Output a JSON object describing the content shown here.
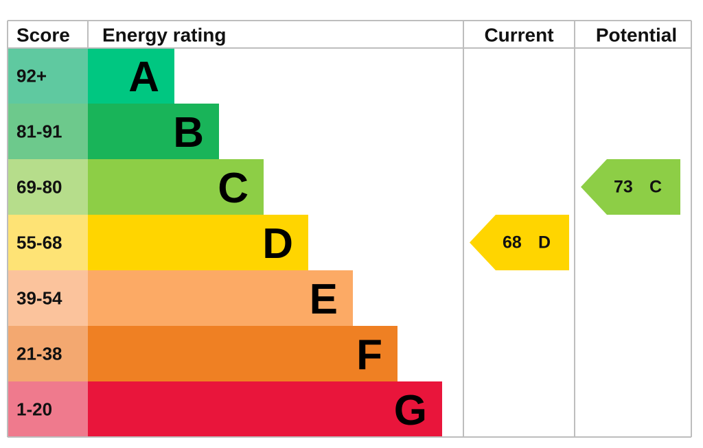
{
  "header": {
    "score": "Score",
    "rating": "Energy rating",
    "current": "Current",
    "potential": "Potential"
  },
  "bands": [
    {
      "score": "92+",
      "letter": "A",
      "color": "#00c781",
      "score_color": "#5fc9a0"
    },
    {
      "score": "81-91",
      "letter": "B",
      "color": "#19b459",
      "score_color": "#6dc98c"
    },
    {
      "score": "69-80",
      "letter": "C",
      "color": "#8dce46",
      "score_color": "#b6dd8b"
    },
    {
      "score": "55-68",
      "letter": "D",
      "color": "#ffd500",
      "score_color": "#fee375"
    },
    {
      "score": "39-54",
      "letter": "E",
      "color": "#fcaa65",
      "score_color": "#fbc39c"
    },
    {
      "score": "21-38",
      "letter": "F",
      "color": "#ef8023",
      "score_color": "#f3a870"
    },
    {
      "score": "1-20",
      "letter": "G",
      "color": "#e9153b",
      "score_color": "#ef7a8d"
    }
  ],
  "current": {
    "value": 68,
    "letter": "D",
    "color": "#ffd500"
  },
  "potential": {
    "value": 73,
    "letter": "C",
    "color": "#8dce46"
  }
}
